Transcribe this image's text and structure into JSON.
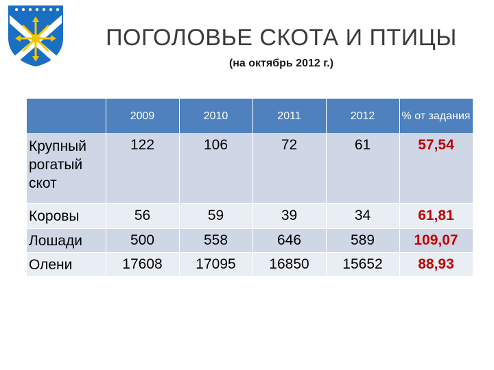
{
  "header": {
    "title": "ПОГОЛОВЬЕ СКОТА И ПТИЦЫ",
    "subtitle": "(на октябрь 2012 г.)"
  },
  "logo": {
    "icon": "coat-of-arms-icon",
    "colors": [
      "#1a6fc2",
      "#ffffff",
      "#f5c400"
    ]
  },
  "table": {
    "headers": [
      "",
      "2009",
      "2010",
      "2011",
      "2012",
      "% от задания"
    ],
    "rows": [
      {
        "label": "Крупный рогатый скот",
        "values": [
          "122",
          "106",
          "72",
          "61"
        ],
        "percent": "57,54"
      },
      {
        "label": "Коровы",
        "values": [
          "56",
          "59",
          "39",
          "34"
        ],
        "percent": "61,81"
      },
      {
        "label": "Лошади",
        "values": [
          "500",
          "558",
          "646",
          "589"
        ],
        "percent": "109,07"
      },
      {
        "label": "Олени",
        "values": [
          "17608",
          "17095",
          "16850",
          "15652"
        ],
        "percent": "88,93"
      }
    ]
  },
  "colors": {
    "header_bg": "#4e81bd",
    "row_dark": "#cfd7e7",
    "row_light": "#e9edf4",
    "percent": "#c00000"
  }
}
